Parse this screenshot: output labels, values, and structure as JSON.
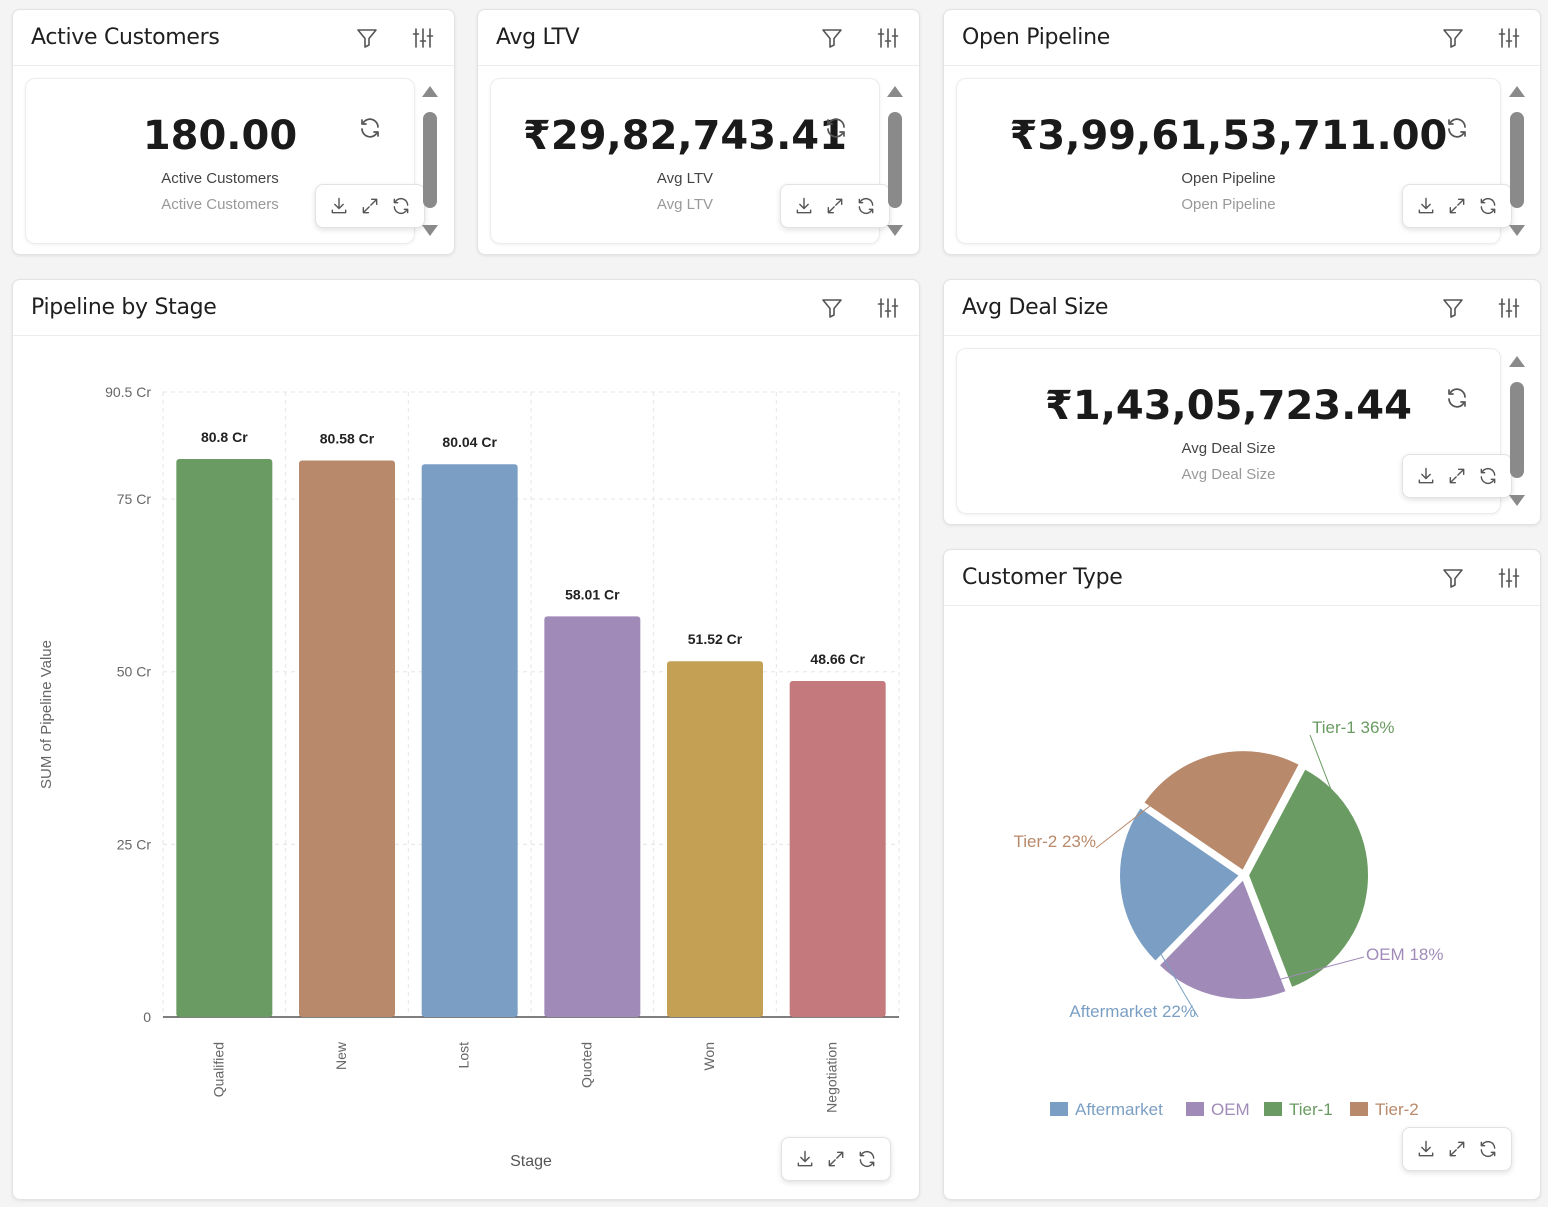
{
  "kpis": [
    {
      "title": "Active Customers",
      "value": "180.00",
      "label": "Active Customers",
      "sublabel": "Active Customers"
    },
    {
      "title": "Avg LTV",
      "value": "₹29,82,743.41",
      "label": "Avg LTV",
      "sublabel": "Avg LTV"
    },
    {
      "title": "Open Pipeline",
      "value": "₹3,99,61,53,711.00",
      "label": "Open Pipeline",
      "sublabel": "Open Pipeline"
    },
    {
      "title": "Avg Deal Size",
      "value": "₹1,43,05,723.44",
      "label": "Avg Deal Size",
      "sublabel": "Avg Deal Size"
    }
  ],
  "bar_panel": {
    "title": "Pipeline by Stage"
  },
  "pie_panel": {
    "title": "Customer Type"
  },
  "icons": {
    "filter": "filter-icon",
    "settings": "sliders-icon",
    "refresh": "refresh-icon",
    "download": "download-icon",
    "expand": "expand-icon"
  },
  "chart_data": [
    {
      "type": "bar",
      "title": "",
      "xlabel": "Stage",
      "ylabel": "SUM of Pipeline Value",
      "categories": [
        "Qualified",
        "New",
        "Lost",
        "Quoted",
        "Won",
        "Negotiation"
      ],
      "values": [
        80.8,
        80.58,
        80.04,
        58.01,
        51.52,
        48.66
      ],
      "data_labels": [
        "80.8 Cr",
        "80.58 Cr",
        "80.04 Cr",
        "58.01 Cr",
        "51.52 Cr",
        "48.66 Cr"
      ],
      "colors": [
        "#6a9b62",
        "#b8896b",
        "#7b9fc4",
        "#a08bb8",
        "#c4a055",
        "#c47a7c"
      ],
      "ylim": [
        0,
        90.5
      ],
      "yticks": [
        0,
        25,
        50,
        75,
        90.5
      ],
      "ytick_labels": [
        "0",
        "25 Cr",
        "50 Cr",
        "75 Cr",
        "90.5 Cr"
      ],
      "grid": true
    },
    {
      "type": "pie",
      "title": "",
      "slices": [
        {
          "name": "Tier-1",
          "value": 36,
          "label": "Tier-1 36%",
          "color": "#6a9b62"
        },
        {
          "name": "OEM",
          "value": 18,
          "label": "OEM 18%",
          "color": "#a08bb8"
        },
        {
          "name": "Aftermarket",
          "value": 22,
          "label": "Aftermarket 22%",
          "color": "#7b9fc4"
        },
        {
          "name": "Tier-2",
          "value": 23,
          "label": "Tier-2 23%",
          "color": "#b8896b"
        }
      ],
      "legend": [
        "Aftermarket",
        "OEM",
        "Tier-1",
        "Tier-2"
      ],
      "legend_colors": [
        "#7b9fc4",
        "#a08bb8",
        "#6a9b62",
        "#b8896b"
      ],
      "legend_position": "bottom"
    }
  ]
}
